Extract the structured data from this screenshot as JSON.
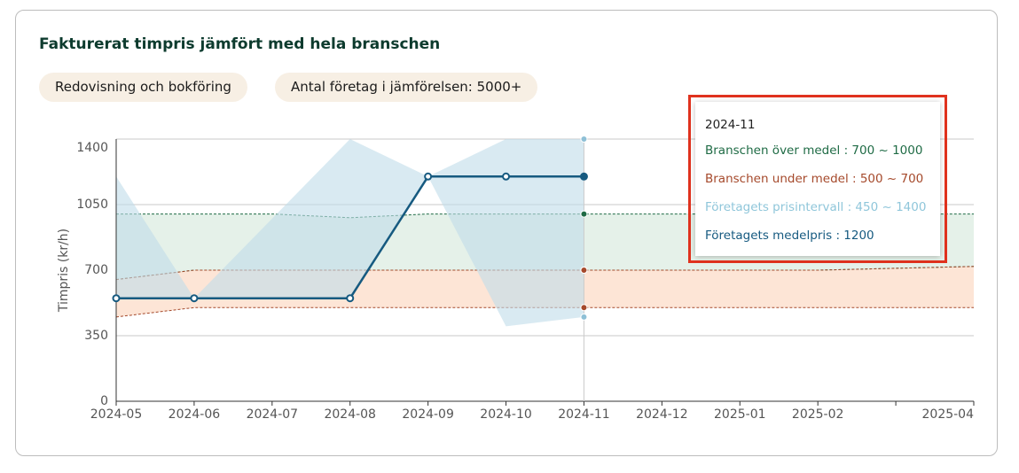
{
  "tags": [
    "Redovisning och bokföring",
    "Antal företag i jämförelsen: 5000+"
  ],
  "chart_data": {
    "type": "range-line",
    "title": "Fakturerat timpris jämfört med hela branschen",
    "y_label": "Timpris (kr/h)",
    "categories": [
      "2024-05",
      "2024-06",
      "2024-07",
      "2024-08",
      "2024-09",
      "2024-10",
      "2024-11",
      "2024-12",
      "2025-01",
      "2025-02",
      null,
      "2025-04"
    ],
    "ylim": [
      0,
      1400
    ],
    "yticks": [
      0,
      350,
      700,
      1050,
      1400
    ],
    "grid": true,
    "bands": [
      {
        "name": "Branschen över medel",
        "color": "#1f6b45",
        "fill": "#e5f1e9",
        "low": [
          650,
          700,
          700,
          700,
          700,
          700,
          700,
          700,
          700,
          700,
          710,
          720
        ],
        "high": [
          1000,
          1000,
          1000,
          980,
          1000,
          1000,
          1000,
          1000,
          1000,
          1000,
          1000,
          1000
        ]
      },
      {
        "name": "Branschen under medel",
        "color": "#a5492b",
        "fill": "#fde5d6",
        "low": [
          450,
          500,
          500,
          500,
          500,
          500,
          500,
          500,
          500,
          500,
          500,
          500
        ],
        "high": [
          650,
          700,
          700,
          700,
          700,
          700,
          700,
          700,
          700,
          700,
          710,
          720
        ]
      }
    ],
    "interval": {
      "name": "Företagets prisintervall",
      "color": "#8fc0d6",
      "fill": "#bfdcea",
      "x": [
        "2024-05",
        "2024-06",
        "2024-08",
        "2024-09",
        "2024-10",
        "2024-11"
      ],
      "low": [
        550,
        550,
        550,
        1200,
        400,
        450
      ],
      "high": [
        1200,
        550,
        1400,
        1200,
        1400,
        1400
      ]
    },
    "series": [
      {
        "name": "Företagets medelpris",
        "color": "#165a80",
        "x": [
          "2024-05",
          "2024-06",
          "2024-08",
          "2024-09",
          "2024-10",
          "2024-11"
        ],
        "values": [
          550,
          550,
          550,
          1200,
          1200,
          1200
        ]
      }
    ]
  },
  "tooltip": {
    "title": "2024-11",
    "rows": [
      "Branschen över medel : 700 ~ 1000",
      "Branschen under medel : 500 ~ 700",
      "Företagets prisintervall : 450 ~ 1400",
      "Företagets medelpris : 1200"
    ]
  }
}
